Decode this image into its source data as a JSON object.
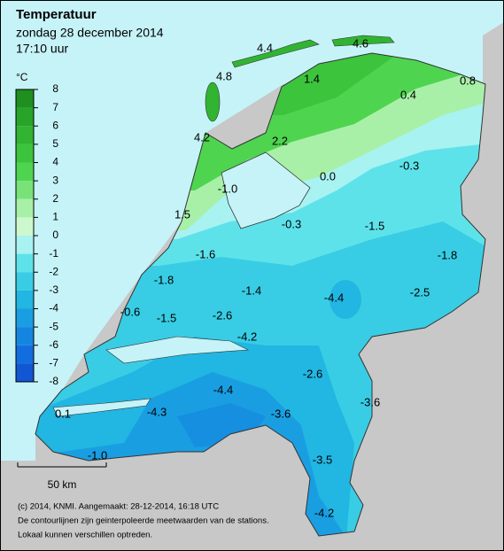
{
  "header": {
    "title": "Temperatuur",
    "date": "zondag 28 december 2014",
    "time": "17:10 uur"
  },
  "legend": {
    "unit": "°C",
    "ticks": [
      8,
      7,
      6,
      5,
      4,
      3,
      2,
      1,
      0,
      -1,
      -2,
      -3,
      -4,
      -5,
      -6,
      -7,
      -8
    ],
    "colors": [
      "#1f8f1f",
      "#28a428",
      "#31b431",
      "#3cc43c",
      "#4fd44f",
      "#78e278",
      "#a8f0a8",
      "#cdf8cd",
      "#a8f2f2",
      "#5ee2ea",
      "#38cde4",
      "#22b6e2",
      "#1a9ee2",
      "#1486e0",
      "#126ede",
      "#1156d2"
    ]
  },
  "stations": [
    "4.4",
    "4.6",
    "4.8",
    "1.4",
    "0.4",
    "0.8",
    "4.2",
    "2.2",
    "0.0",
    "-0.3",
    "-1.0",
    "1.5",
    "-0.3",
    "-1.5",
    "-1.8",
    "-1.6",
    "-1.8",
    "-1.4",
    "-4.4",
    "-2.5",
    "-0.6",
    "-1.5",
    "-2.6",
    "-4.2",
    "-2.6",
    "-4.4",
    "-3.6",
    "-3.6",
    "0.1",
    "-4.3",
    "-3.5",
    "-1.0",
    "-4.2"
  ],
  "scale": "50 km",
  "footer": [
    "(c) 2014, KNMI. Aangemaakt: 28-12-2014, 16:18 UTC",
    "De contourlijnen zijn geinterpoleerde meetwaarden van de stations.",
    "Lokaal kunnen verschillen optreden."
  ]
}
